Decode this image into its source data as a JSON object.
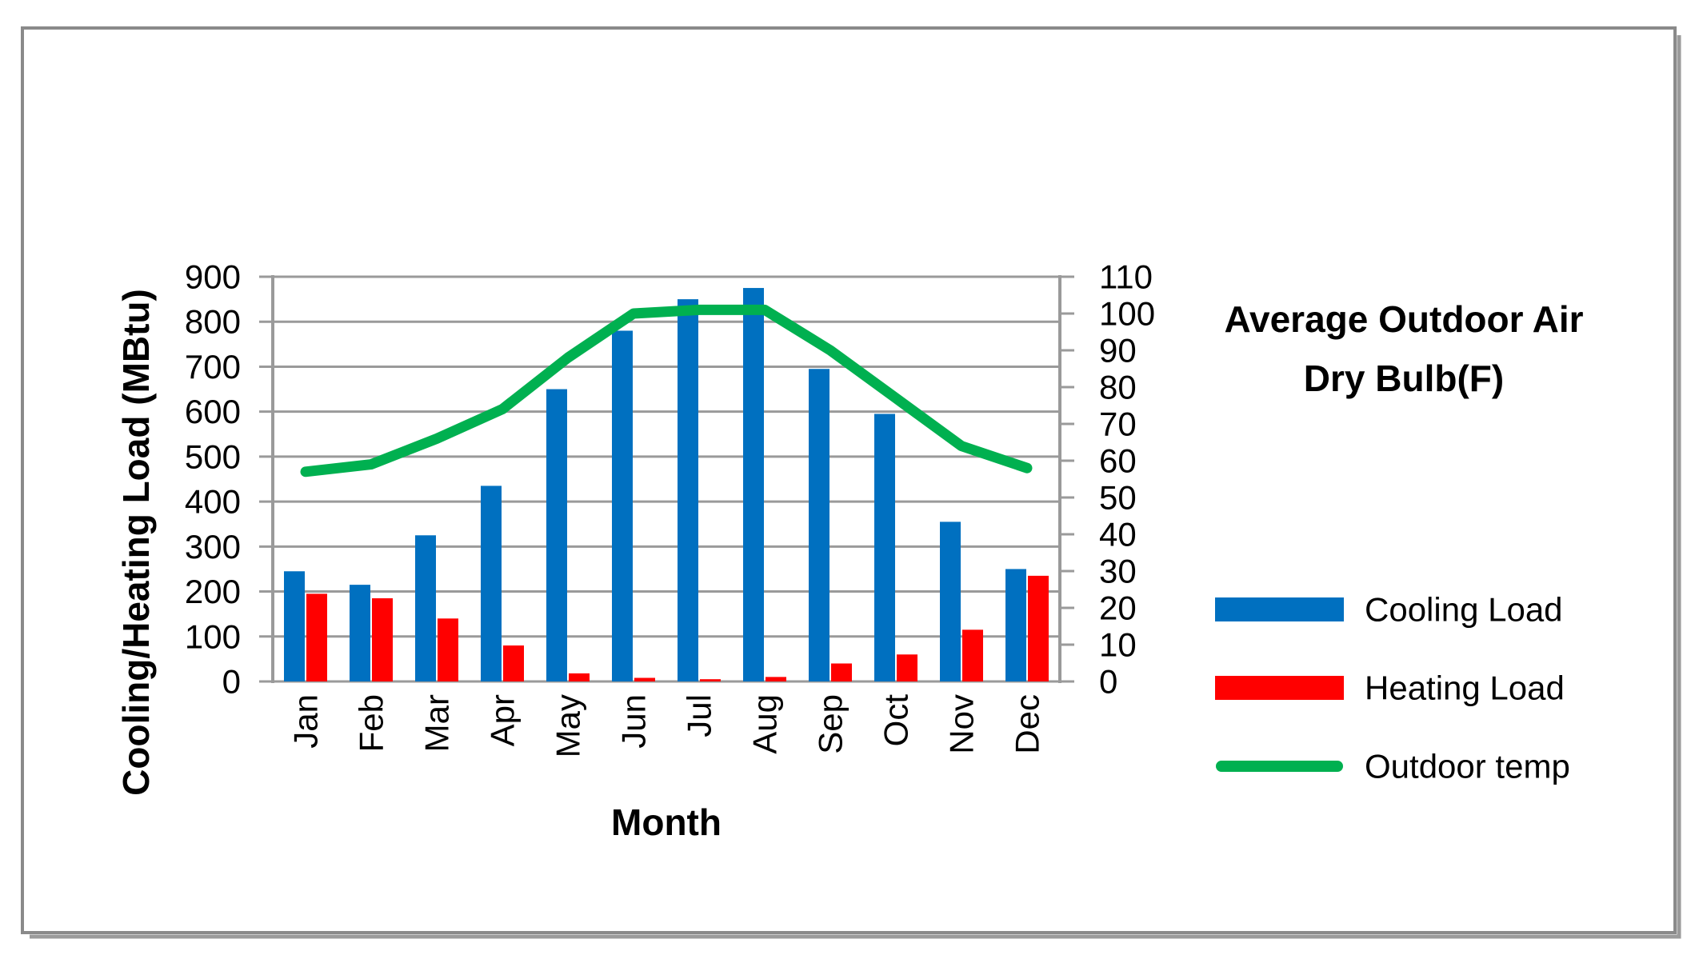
{
  "chart_data": {
    "type": "combo-bar-line",
    "categories": [
      "Jan",
      "Feb",
      "Mar",
      "Apr",
      "May",
      "Jun",
      "Jul",
      "Aug",
      "Sep",
      "Oct",
      "Nov",
      "Dec"
    ],
    "series": [
      {
        "name": "Cooling Load",
        "type": "bar",
        "axis": "left",
        "values": [
          245,
          215,
          325,
          435,
          650,
          780,
          850,
          875,
          695,
          595,
          355,
          250
        ]
      },
      {
        "name": "Heating Load",
        "type": "bar",
        "axis": "left",
        "values": [
          195,
          185,
          140,
          80,
          18,
          8,
          5,
          10,
          40,
          60,
          115,
          235
        ]
      },
      {
        "name": "Outdoor temp",
        "type": "line",
        "axis": "right",
        "values": [
          57,
          59,
          66,
          74,
          88,
          100,
          101,
          101,
          90,
          77,
          64,
          58
        ]
      }
    ],
    "left_axis": {
      "title": "Cooling/Heating Load (MBtu)",
      "min": 0,
      "max": 900,
      "step": 100,
      "tick_labels": [
        "900",
        "800",
        "700",
        "600",
        "500",
        "400",
        "300",
        "200",
        "100",
        "0"
      ]
    },
    "right_axis": {
      "title": "Average Outdoor Air Dry Bulb(F)",
      "title_lines": [
        "Average Outdoor Air",
        "Dry Bulb(F)"
      ],
      "min": 0,
      "max": 110,
      "step": 10,
      "tick_labels": [
        "110",
        "100",
        "90",
        "80",
        "70",
        "60",
        "50",
        "40",
        "30",
        "20",
        "10",
        "0"
      ]
    },
    "x_axis": {
      "title": "Month"
    },
    "grid": true,
    "legend_position": "right"
  },
  "legend": {
    "items": [
      {
        "label": "Cooling Load",
        "swatch": "bar",
        "color": "#0070C0"
      },
      {
        "label": "Heating Load",
        "swatch": "bar",
        "color": "#FF0000"
      },
      {
        "label": "Outdoor temp",
        "swatch": "line",
        "color": "#00B050"
      }
    ]
  },
  "colors": {
    "cooling": "#0070C0",
    "heating": "#FF0000",
    "outdoor_temp": "#00B050",
    "gridline": "#9A9A9A",
    "frame_border": "#8A8A8A",
    "frame_shadow": "#9B9B9B",
    "text": "#000000",
    "background": "#FFFFFF"
  }
}
